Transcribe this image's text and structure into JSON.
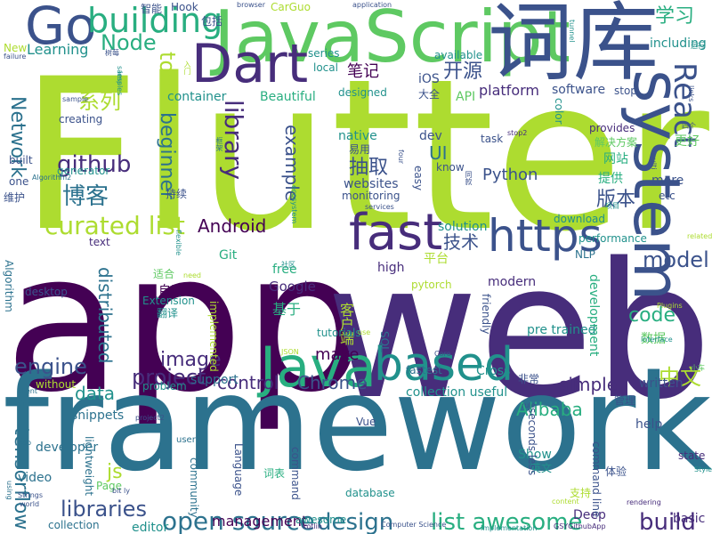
{
  "palette": {
    "dark_purple": "#440154",
    "purple": "#472d7b",
    "indigo": "#3b528b",
    "blue": "#2c728e",
    "teal": "#21918c",
    "green": "#28ae80",
    "lime": "#5ec962",
    "yellow_green": "#addc30",
    "yellow": "#fde725"
  },
  "words": [
    "Flutter",
    "app",
    "web",
    "framework",
    "JavaScript",
    "词库",
    "Dart",
    "system",
    "fast",
    "https",
    "Java",
    "based",
    "Go",
    "building",
    "学习",
    "Node",
    "tool",
    "library",
    "React",
    "开源",
    "笔记",
    "系列",
    "github",
    "博客",
    "curated list",
    "抽取",
    "版本",
    "Android",
    "model",
    "Network",
    "beginner",
    "example",
    "open source",
    "design",
    "build",
    "libraries",
    "engine",
    "image",
    "project",
    "control",
    "Chrome",
    "code",
    "distributed",
    "simple",
    "js",
    "data",
    "中文",
    "Alibaba",
    "list awesome",
    "tensorflow",
    "Python",
    "UI",
    "技术",
    "solution",
    "平台",
    "Google",
    "make",
    "management",
    "platform",
    "software",
    "container",
    "Beautiful",
    "Learning",
    "including",
    "iOS",
    "API",
    "dev",
    "native",
    "websites",
    "more",
    "更好",
    "网站",
    "解决方案",
    "提供",
    "free",
    "high",
    "modern",
    "自动",
    "翻译",
    "基于",
    "客户端",
    "数据",
    "pre trained",
    "development",
    "written",
    "support",
    "help",
    "Deep",
    "basic",
    "editor",
    "awesome",
    "Show",
    "state",
    "Git",
    "Vue",
    "download",
    "performance",
    "NLP",
    "desktop",
    "Algorithm",
    "snippets",
    "developer",
    "tutorials",
    "Cross",
    "fastest",
    "SQL",
    "collection useful",
    "database",
    "英文",
    "支持",
    "体验",
    "管理",
    "非常",
    "community",
    "Language",
    "lightweight",
    "collection",
    "Page",
    "video",
    "text",
    "world",
    "Strings",
    "generator",
    "one",
    "built",
    "creating",
    "维护",
    "持续",
    "适合",
    "Extension",
    "need",
    "without",
    "client",
    "time",
    "user",
    "top",
    "using",
    "bit ly",
    "JSON",
    "seconds less",
    "command",
    "interface",
    "Plugins",
    "related",
    "小车",
    "Style",
    "rule",
    "problem",
    "friendly",
    "use",
    "Core",
    "services",
    "Computer Science",
    "kotlin",
    "GSYGithubApp",
    "rendering",
    "implementation",
    "content",
    "implemented",
    "flexible",
    "ecosystem",
    "etc",
    "provides",
    "stop",
    "project2",
    "links",
    "task",
    "know",
    "multi",
    "stop2",
    "运行",
    "Hook",
    "智能",
    "包括",
    "browser",
    "CarGuo",
    "application",
    "tunnel",
    "New",
    "failure",
    "树莓",
    "入门",
    "Algorithm2",
    "samples",
    "series",
    "local",
    "designed",
    "大全",
    "available",
    "four",
    "框架",
    "monitoring",
    "easy",
    "同款",
    "易用",
    "四个",
    "项目",
    "pytorch",
    "词表",
    "社区",
    "color",
    "command line",
    "less",
    "sample",
    "日常"
  ]
}
